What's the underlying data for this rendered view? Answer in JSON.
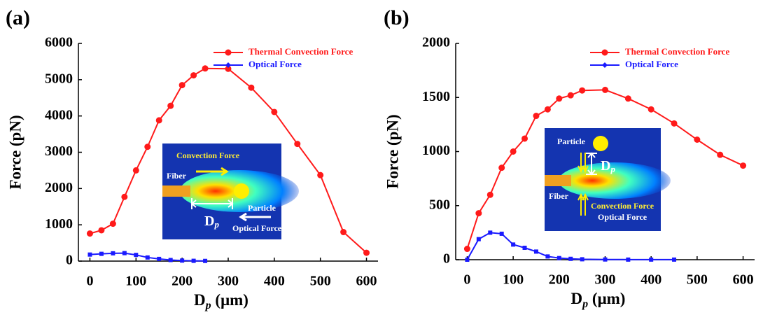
{
  "chart_data": [
    {
      "type": "line",
      "panel": "(a)",
      "ylabel": "Force (pN)",
      "xlabel": [
        "D",
        "p",
        " (μm)"
      ],
      "xlim": [
        -25,
        625
      ],
      "xticks": [
        0,
        100,
        200,
        300,
        400,
        500,
        600
      ],
      "ylim": [
        0,
        6000
      ],
      "yticks": [
        0,
        1000,
        2000,
        3000,
        4000,
        5000,
        6000
      ],
      "legend": "upper right",
      "series": [
        {
          "name": "Thermal Convection Force",
          "color": "#ff1a1a",
          "marker": "circle",
          "x": [
            0,
            25,
            50,
            75,
            100,
            125,
            150,
            175,
            200,
            225,
            250,
            300,
            350,
            400,
            450,
            500,
            550,
            600
          ],
          "values": [
            760,
            850,
            1030,
            1770,
            2500,
            3150,
            3880,
            4280,
            4850,
            5120,
            5310,
            5300,
            4780,
            4110,
            3230,
            2370,
            800,
            230
          ]
        },
        {
          "name": "Optical Force",
          "color": "#1a1aff",
          "marker": "square",
          "x": [
            0,
            25,
            50,
            75,
            100,
            125,
            150,
            175,
            200,
            225,
            250
          ],
          "values": [
            180,
            200,
            215,
            220,
            170,
            100,
            60,
            30,
            15,
            8,
            5
          ]
        }
      ],
      "inset": {
        "convection": "Convection Force",
        "fiber": "Fiber",
        "particle": "Particle",
        "distance": [
          "D",
          "p"
        ],
        "optical": "Optical Force"
      }
    },
    {
      "type": "line",
      "panel": "(b)",
      "ylabel": "Force (pN)",
      "xlabel": [
        "D",
        "p",
        " (μm)"
      ],
      "xlim": [
        -25,
        625
      ],
      "xticks": [
        0,
        100,
        200,
        300,
        400,
        500,
        600
      ],
      "ylim": [
        0,
        2000
      ],
      "yticks": [
        0,
        500,
        1000,
        1500,
        2000
      ],
      "legend": "upper right",
      "series": [
        {
          "name": "Thermal Convection Force",
          "color": "#ff1a1a",
          "marker": "circle",
          "x": [
            0,
            25,
            50,
            75,
            100,
            125,
            150,
            175,
            200,
            225,
            250,
            300,
            350,
            400,
            450,
            500,
            550,
            600
          ],
          "values": [
            100,
            430,
            600,
            850,
            1000,
            1120,
            1330,
            1390,
            1490,
            1520,
            1565,
            1570,
            1490,
            1390,
            1260,
            1110,
            970,
            870
          ]
        },
        {
          "name": "Optical Force",
          "color": "#1a1aff",
          "marker": "square",
          "x": [
            0,
            25,
            50,
            75,
            100,
            125,
            150,
            175,
            200,
            225,
            250,
            300,
            350,
            400,
            450
          ],
          "values": [
            0,
            190,
            250,
            240,
            140,
            110,
            75,
            30,
            15,
            8,
            4,
            2,
            1,
            1,
            1
          ]
        }
      ],
      "inset": {
        "particle": "Particle",
        "distance": [
          "D",
          "p"
        ],
        "fiber": "Fiber",
        "convection": "Convection Force",
        "optical": "Optical Force"
      }
    }
  ]
}
